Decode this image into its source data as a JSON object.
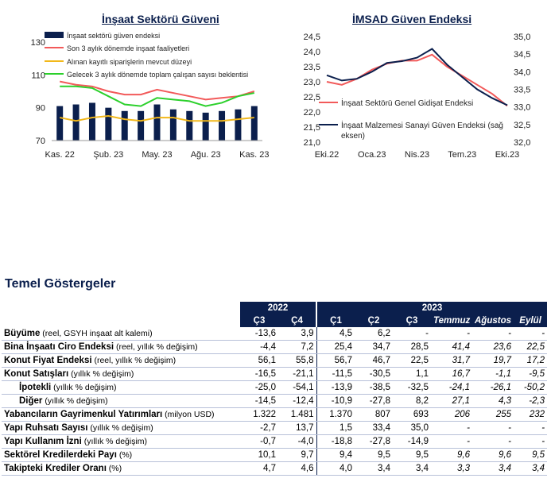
{
  "colors": {
    "navy": "#0b1f4d",
    "red": "#f25a5a",
    "yellow": "#f2b81a",
    "green": "#2bd02b"
  },
  "left_chart_title": "İnşaat Sektörü Güveni",
  "right_chart_title": "İMSAD Güven Endeksi",
  "section_title": "Temel Göstergeler",
  "chart_data": [
    {
      "type": "bar",
      "title": "İnşaat Sektörü Güveni",
      "x_ticks": [
        "Kas. 22",
        "Şub. 23",
        "May. 23",
        "Ağu. 23",
        "Kas. 23"
      ],
      "y_ticks": [
        "130",
        "110",
        "90",
        "70"
      ],
      "ylim": [
        70,
        130
      ],
      "months": 13,
      "legend": [
        "İnşaat sektörü güven endeksi",
        "Son 3 aylık dönemde inşaat faaliyetleri",
        "Alınan kayıtlı siparişlerin mevcut düzeyi",
        "Gelecek 3 aylık dönemde toplam çalışan sayısı beklentisi"
      ],
      "bars": [
        91,
        92,
        93,
        90,
        88,
        88,
        92,
        89,
        88,
        87,
        88,
        89,
        91
      ],
      "series": [
        {
          "name": "Son 3 aylık dönemde inşaat faaliyetleri",
          "color": "#f25a5a",
          "values": [
            106,
            104,
            103,
            100,
            98,
            98,
            101,
            99,
            97,
            95,
            96,
            97,
            100
          ]
        },
        {
          "name": "Alınan kayıtlı siparişlerin mevcut düzeyi",
          "color": "#f2b81a",
          "values": [
            84,
            82,
            84,
            85,
            83,
            82,
            84,
            84,
            82,
            82,
            82,
            83,
            84
          ]
        },
        {
          "name": "Gelecek 3 aylık dönemde toplam çalışan sayısı beklentisi",
          "color": "#2bd02b",
          "values": [
            103,
            103,
            102,
            97,
            92,
            91,
            96,
            95,
            94,
            91,
            93,
            97,
            99
          ]
        }
      ]
    },
    {
      "type": "line",
      "title": "İMSAD Güven Endeksi",
      "x_ticks": [
        "Eki.22",
        "Oca.23",
        "Nis.23",
        "Tem.23",
        "Eki.23"
      ],
      "y_left_ticks": [
        "24,5",
        "24,0",
        "23,5",
        "23,0",
        "22,5",
        "22,0",
        "21,5",
        "21,0"
      ],
      "y_right_ticks": [
        "35,0",
        "34,5",
        "34,0",
        "33,5",
        "33,0",
        "32,5",
        "32,0"
      ],
      "ylim_left": [
        21.0,
        24.5
      ],
      "ylim_right": [
        32.0,
        35.0
      ],
      "months": 13,
      "series": [
        {
          "name": "İnşaat Sektörü Genel Gidişat Endeksi",
          "color": "#f25a5a",
          "axis": "left",
          "values": [
            23.0,
            22.9,
            23.1,
            23.4,
            23.6,
            23.7,
            23.7,
            23.9,
            23.5,
            23.2,
            22.9,
            22.6,
            22.2
          ]
        },
        {
          "name": "İnşaat Malzemesi Sanayi Güven Endeksi (sağ eksen)",
          "color": "#0b1f4d",
          "axis": "right",
          "values": [
            33.9,
            33.75,
            33.8,
            34.0,
            34.25,
            34.3,
            34.4,
            34.65,
            34.2,
            33.85,
            33.5,
            33.25,
            33.05
          ]
        }
      ]
    }
  ],
  "table": {
    "years": [
      "2022",
      "2023"
    ],
    "quarters": [
      "Ç3",
      "Ç4",
      "Ç1",
      "Ç2",
      "Ç3",
      "Temmuz",
      "Ağustos",
      "Eylül"
    ],
    "rows": [
      {
        "label": "Büyüme",
        "unit": " (reel, GSYH inşaat alt kalemi)",
        "indent": false,
        "values": [
          "-13,6",
          "3,9",
          "4,5",
          "6,2",
          "-",
          "-",
          "-",
          "-"
        ]
      },
      {
        "label": "Bina İnşaatı Ciro Endeksi",
        "unit": " (reel, yıllık % değişim)",
        "indent": false,
        "values": [
          "-4,4",
          "7,2",
          "25,4",
          "34,7",
          "28,5",
          "41,4",
          "23,6",
          "22,5"
        ]
      },
      {
        "label": "Konut Fiyat Endeksi",
        "unit": " (reel, yıllık % değişim)",
        "indent": false,
        "values": [
          "56,1",
          "55,8",
          "56,7",
          "46,7",
          "22,5",
          "31,7",
          "19,7",
          "17,2"
        ]
      },
      {
        "label": "Konut Satışları",
        "unit": " (yıllık % değişim)",
        "indent": false,
        "values": [
          "-16,5",
          "-21,1",
          "-11,5",
          "-30,5",
          "1,1",
          "16,7",
          "-1,1",
          "-9,5"
        ]
      },
      {
        "label": "İpotekli",
        "unit": " (yıllık % değişim)",
        "indent": true,
        "values": [
          "-25,0",
          "-54,1",
          "-13,9",
          "-38,5",
          "-32,5",
          "-24,1",
          "-26,1",
          "-50,2"
        ]
      },
      {
        "label": "Diğer",
        "unit": " (yıllık % değişim)",
        "indent": true,
        "values": [
          "-14,5",
          "-12,4",
          "-10,9",
          "-27,8",
          "8,2",
          "27,1",
          "4,3",
          "-2,3"
        ]
      },
      {
        "label": "Yabancıların Gayrimenkul Yatırımları",
        "unit": " (milyon USD)",
        "indent": false,
        "values": [
          "1.322",
          "1.481",
          "1.370",
          "807",
          "693",
          "206",
          "255",
          "232"
        ]
      },
      {
        "label": "Yapı Ruhsatı Sayısı",
        "unit": " (yıllık % değişim)",
        "indent": false,
        "values": [
          "-2,7",
          "13,7",
          "1,5",
          "33,4",
          "35,0",
          "-",
          "-",
          "-"
        ]
      },
      {
        "label": "Yapı Kullanım İzni",
        "unit": " (yıllık % değişim)",
        "indent": false,
        "values": [
          "-0,7",
          "-4,0",
          "-18,8",
          "-27,8",
          "-14,9",
          "-",
          "-",
          "-"
        ]
      },
      {
        "label": "Sektörel Kredilerdeki Payı",
        "unit": " (%)",
        "indent": false,
        "values": [
          "10,1",
          "9,7",
          "9,4",
          "9,5",
          "9,5",
          "9,6",
          "9,6",
          "9,5"
        ]
      },
      {
        "label": "Takipteki Krediler Oranı",
        "unit": " (%)",
        "indent": false,
        "values": [
          "4,7",
          "4,6",
          "4,0",
          "3,4",
          "3,4",
          "3,3",
          "3,4",
          "3,4"
        ]
      }
    ]
  }
}
